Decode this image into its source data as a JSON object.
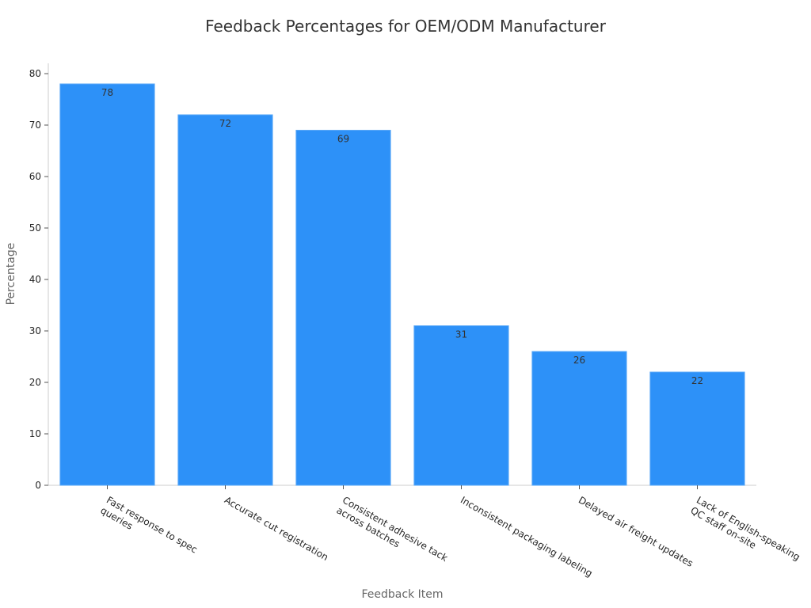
{
  "chart_data": {
    "type": "bar",
    "title": "Feedback Percentages for OEM/ODM Manufacturer",
    "x_label": "Feedback Item",
    "y_label": "Percentage",
    "categories": [
      "Fast response to spec\nqueries",
      "Accurate cut registration",
      "Consistent adhesive tack\nacross batches",
      "Inconsistent packaging labeling",
      "Delayed air freight updates",
      "Lack of English-speaking\nQC staff on-site"
    ],
    "values": [
      78,
      72,
      69,
      31,
      26,
      22
    ],
    "color": "#2d91f8",
    "ylim": [
      0,
      82
    ],
    "yticks": [
      0,
      10,
      20,
      30,
      40,
      50,
      60,
      70,
      80
    ],
    "grid": false
  }
}
